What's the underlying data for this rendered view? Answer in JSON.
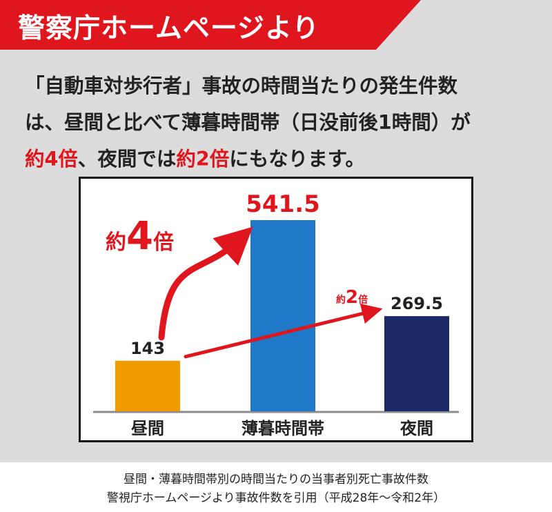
{
  "banner": {
    "title": "警察庁ホームページより",
    "bg_color": "#e0161e"
  },
  "headline": {
    "line1": "「自動車対歩行者」事故の時間当たりの発生件数",
    "line2": "は、昼間と比べて薄暮時間帯（日没前後1時間）が",
    "line3_hl1": "約4倍",
    "line3_mid": "、夜間では",
    "line3_hl2": "約2倍",
    "line3_end": "にもなります。"
  },
  "chart_data": {
    "type": "bar",
    "categories": [
      "昼間",
      "薄暮時間帯",
      "夜間"
    ],
    "values": [
      143,
      541.5,
      269.5
    ],
    "value_labels": [
      "143",
      "541.5",
      "269.5"
    ],
    "colors": [
      "#f29b00",
      "#1f78c8",
      "#1b2a66"
    ],
    "highlight_value_color": "#e0161e",
    "ylim": [
      0,
      600
    ],
    "grid": false,
    "annotations": [
      {
        "from": "昼間",
        "to": "薄暮時間帯",
        "prefix": "約",
        "number": "4",
        "suffix": "倍"
      },
      {
        "from": "昼間",
        "to": "夜間",
        "prefix": "約",
        "number": "2",
        "suffix": "倍"
      }
    ]
  },
  "caption": {
    "line1": "昼間・薄暮時間帯別の時間当たりの当事者別死亡事故件数",
    "line2": "警視庁ホームページより事故件数を引用（平成28年〜令和2年）"
  }
}
